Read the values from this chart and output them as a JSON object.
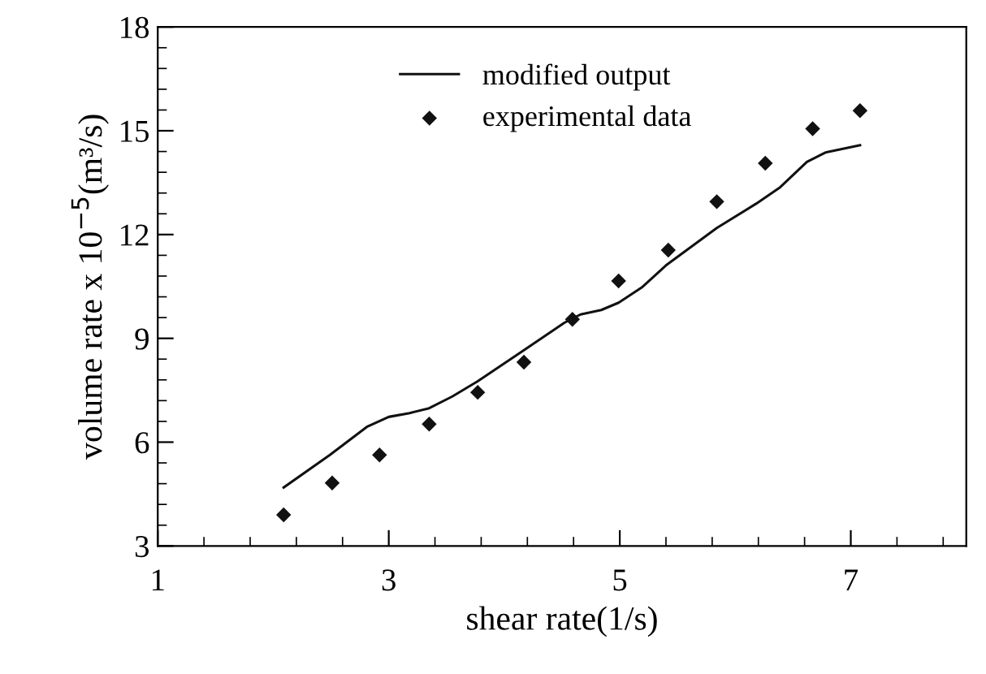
{
  "chart_data": {
    "type": "line",
    "xlabel": "shear rate(1/s)",
    "ylabel": "volume rate x 10$^{−5}$(m³/s)",
    "xlim": [
      1,
      8
    ],
    "xticks": [
      1,
      3,
      5,
      7
    ],
    "ylim": [
      3,
      18
    ],
    "yticks": [
      3,
      6,
      9,
      12,
      15,
      18
    ],
    "grid": false,
    "legend": "top",
    "series": [
      {
        "name": "modified output",
        "color": "#111111",
        "line_style": "solid",
        "marker": "none",
        "x": [
          2.09,
          2.49,
          2.81,
          3.0,
          3.18,
          3.35,
          3.55,
          3.77,
          4.17,
          4.52,
          4.66,
          4.84,
          4.99,
          5.19,
          5.4,
          5.84,
          6.18,
          6.39,
          6.62,
          6.78,
          7.08
        ],
        "values": [
          4.69,
          5.63,
          6.44,
          6.73,
          6.84,
          6.98,
          7.32,
          7.76,
          8.66,
          9.45,
          9.69,
          9.82,
          10.03,
          10.47,
          11.11,
          12.19,
          12.89,
          13.37,
          14.1,
          14.37,
          14.58
        ]
      },
      {
        "name": "experimental data",
        "type": "scatter",
        "color": "#111111",
        "marker": "diamond",
        "x": [
          2.09,
          2.51,
          2.92,
          3.35,
          3.77,
          4.17,
          4.59,
          4.99,
          5.42,
          5.84,
          6.26,
          6.67,
          7.08
        ],
        "values": [
          3.9,
          4.82,
          5.63,
          6.52,
          7.44,
          8.31,
          9.55,
          10.66,
          11.55,
          12.95,
          14.06,
          15.06,
          15.58
        ]
      }
    ]
  }
}
